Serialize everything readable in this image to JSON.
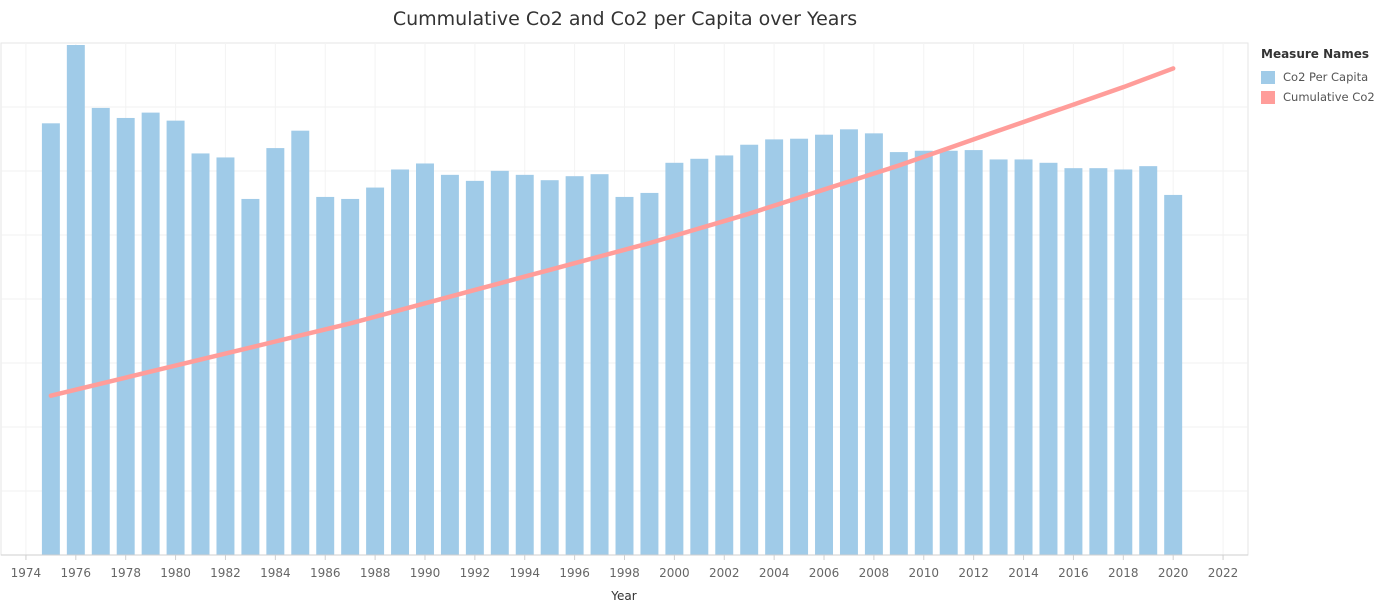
{
  "chart_data": {
    "type": "bar+line",
    "title": "Cummulative Co2 and Co2 per Capita over Years",
    "xlabel": "Year",
    "ylabel": "",
    "xlim": [
      1973,
      2023
    ],
    "ylim": [
      0,
      7.65
    ],
    "x_ticks": [
      1974,
      1976,
      1978,
      1980,
      1982,
      1984,
      1986,
      1988,
      1990,
      1992,
      1994,
      1996,
      1998,
      2000,
      2002,
      2004,
      2006,
      2008,
      2010,
      2012,
      2014,
      2016,
      2018,
      2020,
      2022
    ],
    "y_axis_labels_shown": false,
    "grid": true,
    "legend": {
      "title": "Measure Names",
      "position": "right"
    },
    "x": [
      1975,
      1976,
      1977,
      1978,
      1979,
      1980,
      1981,
      1982,
      1983,
      1984,
      1985,
      1986,
      1987,
      1988,
      1989,
      1990,
      1991,
      1992,
      1993,
      1994,
      1995,
      1996,
      1997,
      1998,
      1999,
      2000,
      2001,
      2002,
      2003,
      2004,
      2005,
      2006,
      2007,
      2008,
      2009,
      2010,
      2011,
      2012,
      2013,
      2014,
      2015,
      2016,
      2017,
      2018,
      2019,
      2020
    ],
    "series": [
      {
        "name": "Co2 Per Capita",
        "kind": "bar",
        "color": "#A0CBE8",
        "values": [
          6.45,
          7.62,
          6.68,
          6.53,
          6.61,
          6.49,
          6.0,
          5.94,
          5.32,
          6.08,
          6.34,
          5.35,
          5.32,
          5.49,
          5.76,
          5.85,
          5.68,
          5.59,
          5.74,
          5.68,
          5.6,
          5.66,
          5.69,
          5.35,
          5.41,
          5.86,
          5.92,
          5.97,
          6.13,
          6.21,
          6.22,
          6.28,
          6.36,
          6.3,
          6.02,
          6.04,
          6.04,
          6.05,
          5.91,
          5.91,
          5.86,
          5.78,
          5.78,
          5.76,
          5.81,
          5.38
        ]
      },
      {
        "name": "Cumulative Co2",
        "kind": "line",
        "color": "#FF9D9A",
        "values": [
          2.38,
          2.47,
          2.56,
          2.65,
          2.74,
          2.83,
          2.92,
          3.01,
          3.1,
          3.19,
          3.28,
          3.37,
          3.46,
          3.56,
          3.66,
          3.76,
          3.86,
          3.96,
          4.06,
          4.16,
          4.26,
          4.36,
          4.46,
          4.56,
          4.66,
          4.77,
          4.88,
          4.99,
          5.1,
          5.22,
          5.34,
          5.46,
          5.58,
          5.7,
          5.82,
          5.95,
          6.08,
          6.21,
          6.34,
          6.47,
          6.6,
          6.73,
          6.86,
          6.99,
          7.13,
          7.27
        ]
      }
    ]
  }
}
